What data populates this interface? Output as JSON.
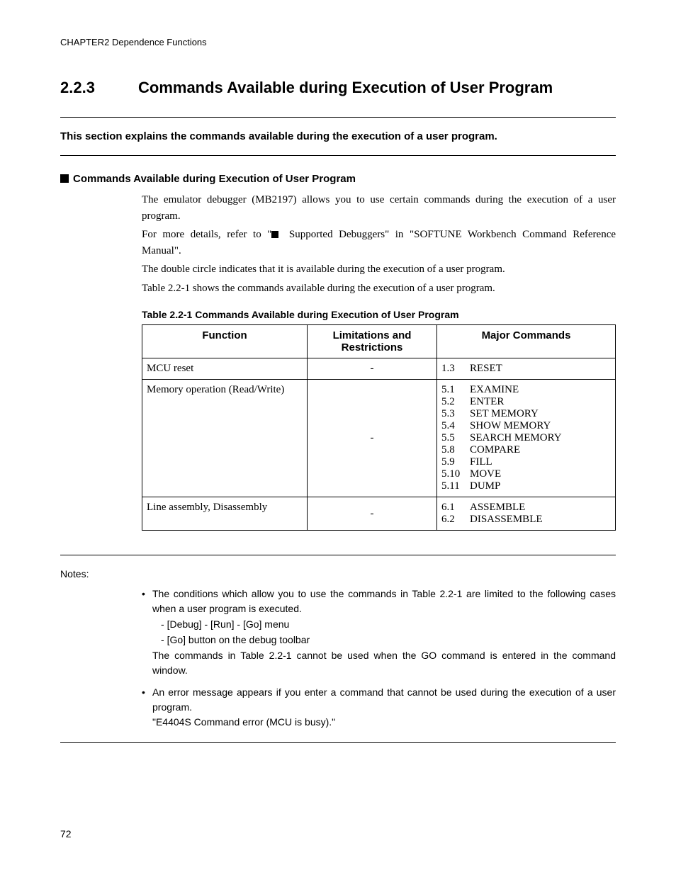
{
  "header": {
    "chapter": "CHAPTER2  Dependence Functions"
  },
  "section": {
    "number": "2.2.3",
    "title": "Commands Available during Execution of User Program"
  },
  "intro": "This section explains the commands available during the execution of a user program.",
  "subhead": "Commands Available during Execution of User Program",
  "paragraphs": {
    "p1": "The emulator debugger (MB2197) allows you to use certain commands during the execution of a user program.",
    "p2a": "For more details, refer to \"",
    "p2b": " Supported Debuggers\" in \"SOFTUNE Workbench Command Reference Manual\".",
    "p3": "The double circle indicates that it is available during the execution of a user program.",
    "p4": "Table 2.2-1 shows the commands available during the execution of a user program."
  },
  "table": {
    "caption": "Table 2.2-1  Commands Available during Execution of User Program",
    "headers": {
      "function": "Function",
      "limitations": "Limitations and Restrictions",
      "commands": "Major Commands"
    },
    "rows": [
      {
        "function": "MCU reset",
        "limitations": "-",
        "commands": [
          {
            "num": "1.3",
            "name": "RESET"
          }
        ]
      },
      {
        "function": "Memory operation (Read/Write)",
        "limitations": "-",
        "commands": [
          {
            "num": "5.1",
            "name": "EXAMINE"
          },
          {
            "num": "5.2",
            "name": "ENTER"
          },
          {
            "num": "5.3",
            "name": "SET MEMORY"
          },
          {
            "num": "5.4",
            "name": "SHOW MEMORY"
          },
          {
            "num": "5.5",
            "name": "SEARCH MEMORY"
          },
          {
            "num": "5.8",
            "name": "COMPARE"
          },
          {
            "num": "5.9",
            "name": "FILL"
          },
          {
            "num": "5.10",
            "name": "MOVE"
          },
          {
            "num": "5.11",
            "name": "DUMP"
          }
        ]
      },
      {
        "function": "Line assembly, Disassembly",
        "limitations": "-",
        "commands": [
          {
            "num": "6.1",
            "name": "ASSEMBLE"
          },
          {
            "num": "6.2",
            "name": "DISASSEMBLE"
          }
        ]
      }
    ]
  },
  "notes": {
    "label": "Notes:",
    "items": {
      "n1": "The conditions which allow you to use the commands in Table 2.2-1 are limited to the following cases when a user program is executed.",
      "n1s1": "[Debug] - [Run] - [Go] menu",
      "n1s2": "[Go] button on the debug toolbar",
      "n1b": "The commands in Table 2.2-1 cannot be used when the GO command is entered in the command window.",
      "n2": "An error message appears if you enter a command that cannot be used during the execution of a user program.",
      "n2b": "\"E4404S Command error (MCU is busy).\""
    }
  },
  "page_number": "72"
}
